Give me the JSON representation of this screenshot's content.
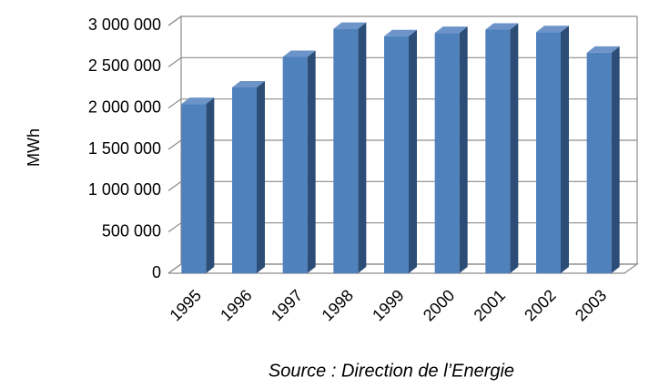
{
  "chart_data": {
    "type": "bar3d",
    "y_label": "MWh",
    "caption": "Source : Direction de l’Energie",
    "categories": [
      "1995",
      "1996",
      "1997",
      "1998",
      "1999",
      "2000",
      "2001",
      "2002",
      "2003"
    ],
    "values": [
      2050000,
      2250000,
      2620000,
      2960000,
      2870000,
      2910000,
      2950000,
      2920000,
      2670000
    ],
    "color": "#4f81bd",
    "ylim": [
      0,
      3000000
    ],
    "yticks": [
      0,
      {
        "value": 500000,
        "label": "500 000"
      },
      {
        "value": 1000000,
        "label": "1 000 000"
      },
      {
        "value": 1500000,
        "label": "1 500 000"
      },
      {
        "value": 2000000,
        "label": "2 000 000"
      },
      {
        "value": 2500000,
        "label": "2 500 000"
      },
      {
        "value": 3000000,
        "label": "3 000 000"
      }
    ],
    "grid": true
  }
}
